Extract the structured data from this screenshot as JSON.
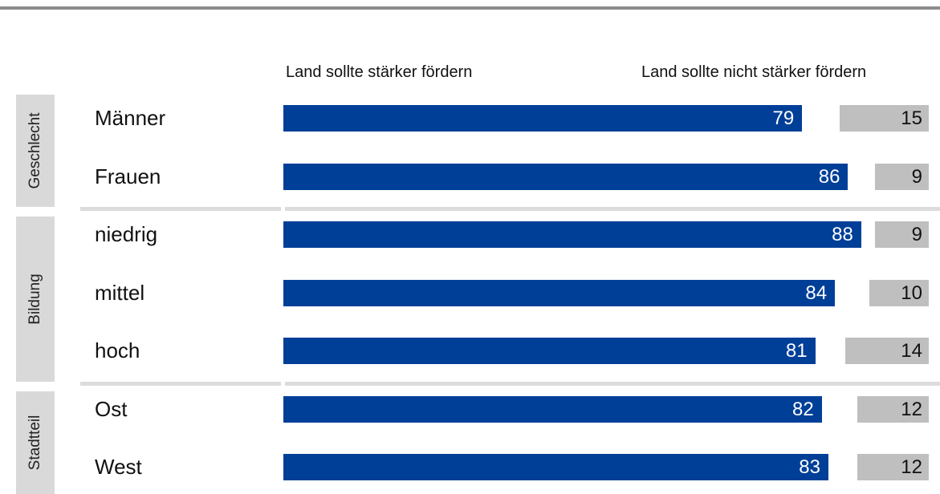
{
  "chart_data": {
    "type": "bar",
    "orientation": "horizontal",
    "stacked_diverging": true,
    "series": [
      {
        "name": "Land sollte stärker fördern",
        "color": "#003f98",
        "values": [
          79,
          86,
          88,
          84,
          81,
          82,
          83
        ]
      },
      {
        "name": "Land sollte nicht stärker fördern",
        "color": "#bfbfbf",
        "values": [
          15,
          9,
          9,
          10,
          14,
          12,
          12
        ]
      }
    ],
    "categories": [
      "Männer",
      "Frauen",
      "niedrig",
      "mittel",
      "hoch",
      "Ost",
      "West"
    ],
    "groups": [
      {
        "label": "Geschlecht",
        "rows": 2
      },
      {
        "label": "Bildung",
        "rows": 3
      },
      {
        "label": "Stadtteil",
        "rows": 2
      }
    ],
    "xlim": [
      0,
      100
    ],
    "title": "",
    "xlabel": "",
    "ylabel": "",
    "legend": "top",
    "grid": false
  }
}
